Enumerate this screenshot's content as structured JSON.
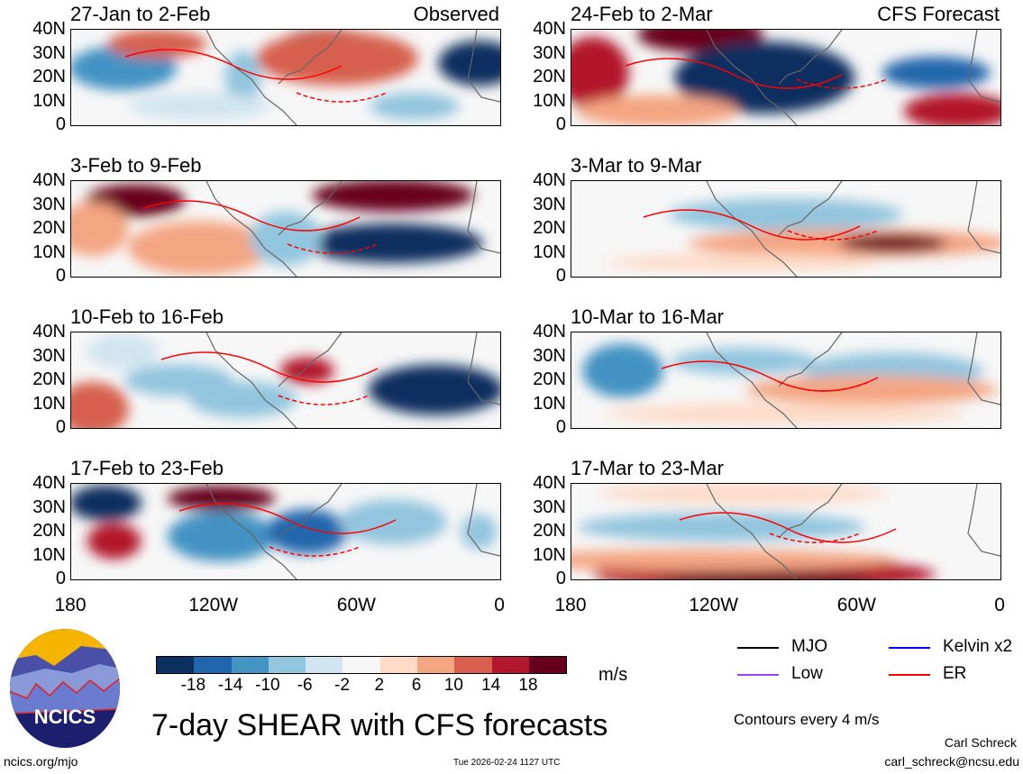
{
  "panels_left": [
    {
      "title": "27-Jan to 2-Feb",
      "tag": "Observed"
    },
    {
      "title": "3-Feb to 9-Feb"
    },
    {
      "title": "10-Feb to 16-Feb"
    },
    {
      "title": "17-Feb to 23-Feb"
    }
  ],
  "panels_right": [
    {
      "title": "24-Feb to 2-Mar",
      "tag": "CFS Forecast"
    },
    {
      "title": "3-Mar to 9-Mar"
    },
    {
      "title": "10-Mar to 16-Mar"
    },
    {
      "title": "17-Mar to 23-Mar"
    }
  ],
  "y_ticks": [
    "40N",
    "30N",
    "20N",
    "10N",
    "0"
  ],
  "x_ticks": [
    "180",
    "120W",
    "60W",
    "0"
  ],
  "colorbar": {
    "colors": [
      "#0b2f5e",
      "#2166ac",
      "#4393c3",
      "#92c5de",
      "#d1e5f0",
      "#f7f7f7",
      "#fddbc7",
      "#f4a582",
      "#d6604d",
      "#b2182b",
      "#67001f"
    ],
    "labels": [
      "-18",
      "-14",
      "-10",
      "-6",
      "-2",
      "2",
      "6",
      "10",
      "14",
      "18"
    ],
    "units": "m/s"
  },
  "legend": [
    {
      "label": "MJO",
      "color": "#000000"
    },
    {
      "label": "Kelvin x2",
      "color": "#0000ff"
    },
    {
      "label": "Low",
      "color": "#a040ff"
    },
    {
      "label": "ER",
      "color": "#ff0000"
    }
  ],
  "contour_note": "Contours every 4 m/s",
  "title": "7-day SHEAR with CFS forecasts",
  "logo_text": "NCICS",
  "url": "ncics.org/mjo",
  "timestamp": "Tue 2026-02-24 1127 UTC",
  "author": "Carl Schreck",
  "email": "carl_schreck@ncsu.edu"
}
